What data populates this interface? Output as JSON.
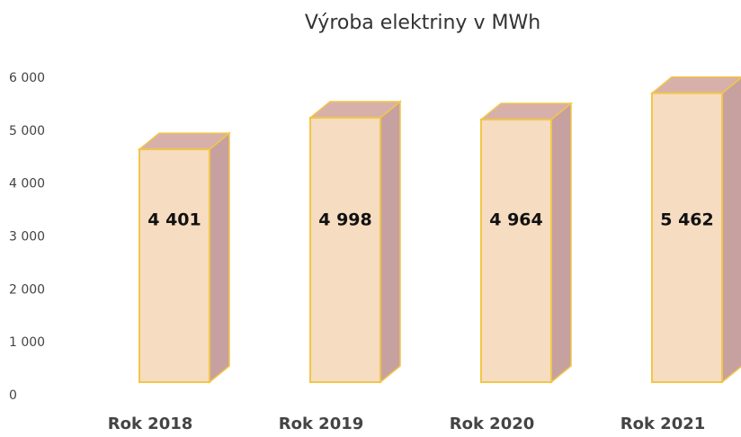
{
  "chart_data": {
    "type": "bar3d",
    "title": "Výroba elektriny v MWh",
    "categories": [
      "Rok 2018",
      "Rok 2019",
      "Rok 2020",
      "Rok 2021"
    ],
    "values": [
      4401,
      4998,
      4964,
      5462
    ],
    "value_labels": [
      "4 401",
      "4 998",
      "4 964",
      "5 462"
    ],
    "color": "#f6dcc0",
    "ylim": [
      0,
      6000
    ],
    "yticks": [
      0,
      {
        "value": 1000,
        "label": "1 000"
      },
      {
        "value": 2000,
        "label": "2 000"
      },
      {
        "value": 3000,
        "label": "3 000"
      },
      {
        "value": 4000,
        "label": "4 000"
      },
      {
        "value": 5000,
        "label": "5 000"
      },
      {
        "value": 6000,
        "label": "6 000"
      }
    ],
    "grid": false
  }
}
